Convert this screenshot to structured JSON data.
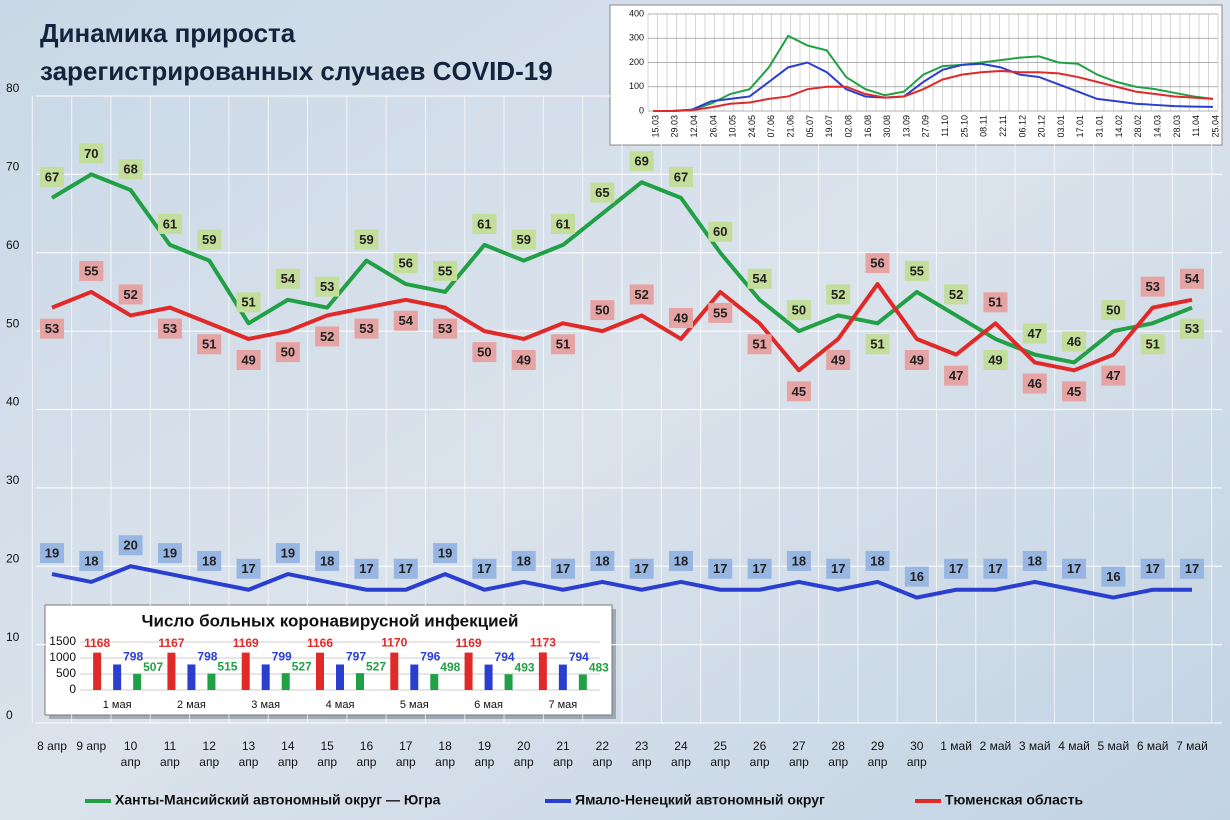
{
  "chart_data": [
    {
      "type": "line",
      "title": "Динамика прироста\nзарегистрированных случаев COVID-19",
      "categories": [
        "8 апр",
        "9 апр",
        "10 апр",
        "11 апр",
        "12 апр",
        "13 апр",
        "14 апр",
        "15 апр",
        "16 апр",
        "17 апр",
        "18 апр",
        "19 апр",
        "20 апр",
        "21 апр",
        "22 апр",
        "23 апр",
        "24 апр",
        "25 апр",
        "26 апр",
        "27 апр",
        "28 апр",
        "29 апр",
        "30 апр",
        "1 май",
        "2 май",
        "3 май",
        "4 май",
        "5 май",
        "6 май",
        "7 май"
      ],
      "series": [
        {
          "name": "Ханты-Мансийский автономный округ — Югра",
          "color": "#22a046",
          "values": [
            67,
            70,
            68,
            61,
            59,
            51,
            54,
            53,
            59,
            56,
            55,
            61,
            59,
            61,
            65,
            69,
            67,
            60,
            54,
            50,
            52,
            51,
            55,
            52,
            49,
            47,
            46,
            50,
            51,
            53
          ]
        },
        {
          "name": "Ямало-Ненецкий автономный округ",
          "color": "#2a3fd0",
          "values": [
            19,
            18,
            20,
            19,
            18,
            17,
            19,
            18,
            17,
            17,
            19,
            17,
            18,
            17,
            18,
            17,
            18,
            17,
            17,
            18,
            17,
            18,
            16,
            17,
            17,
            18,
            17,
            16,
            17,
            17
          ]
        },
        {
          "name": "Тюменская область",
          "color": "#e02a2a",
          "values": [
            53,
            55,
            52,
            53,
            51,
            49,
            50,
            52,
            53,
            54,
            53,
            50,
            49,
            51,
            50,
            52,
            49,
            55,
            51,
            45,
            49,
            56,
            49,
            47,
            51,
            46,
            45,
            47,
            53,
            54
          ]
        }
      ],
      "ylim": [
        0,
        80
      ],
      "yticks": [
        0,
        10,
        20,
        30,
        40,
        50,
        60,
        70,
        80
      ],
      "grid": true
    },
    {
      "type": "line",
      "categories": [
        "15.03",
        "29.03",
        "12.04",
        "26.04",
        "10.05",
        "24.05",
        "07.06",
        "21.06",
        "05.07",
        "19.07",
        "02.08",
        "16.08",
        "30.08",
        "13.09",
        "27.09",
        "11.10",
        "25.10",
        "08.11",
        "22.11",
        "06.12",
        "20.12",
        "03.01",
        "17.01",
        "31.01",
        "14.02",
        "28.02",
        "14.03",
        "28.03",
        "11.04",
        "25.04"
      ],
      "series": [
        {
          "color": "#22a046",
          "values": [
            0,
            0,
            5,
            30,
            70,
            90,
            180,
            310,
            270,
            250,
            140,
            90,
            65,
            80,
            150,
            185,
            190,
            200,
            210,
            220,
            225,
            200,
            195,
            150,
            120,
            100,
            90,
            75,
            60,
            50
          ]
        },
        {
          "color": "#2a3fd0",
          "values": [
            0,
            0,
            5,
            40,
            50,
            60,
            120,
            180,
            200,
            160,
            90,
            60,
            55,
            60,
            120,
            170,
            190,
            195,
            180,
            150,
            140,
            110,
            80,
            50,
            40,
            30,
            25,
            20,
            18,
            17
          ]
        },
        {
          "color": "#e02a2a",
          "values": [
            0,
            0,
            3,
            15,
            30,
            35,
            50,
            60,
            90,
            100,
            100,
            70,
            55,
            60,
            90,
            130,
            150,
            160,
            165,
            160,
            160,
            155,
            140,
            120,
            100,
            80,
            70,
            60,
            55,
            50
          ]
        }
      ],
      "ylim": [
        0,
        400
      ],
      "yticks": [
        0,
        100,
        200,
        300,
        400
      ],
      "grid": true
    },
    {
      "type": "bar",
      "title": "Число больных коронавирусной инфекцией",
      "categories": [
        "1 мая",
        "2 мая",
        "3 мая",
        "4 мая",
        "5 мая",
        "6 мая",
        "7 мая"
      ],
      "series": [
        {
          "color": "#e02a2a",
          "values": [
            1168,
            1167,
            1169,
            1166,
            1170,
            1169,
            1173
          ]
        },
        {
          "color": "#2a3fd0",
          "values": [
            798,
            798,
            799,
            797,
            796,
            794,
            794
          ]
        },
        {
          "color": "#22a046",
          "values": [
            507,
            515,
            527,
            527,
            498,
            493,
            483
          ]
        }
      ],
      "ylim": [
        0,
        1500
      ],
      "yticks": [
        0,
        500,
        1000,
        1500
      ],
      "grid": true
    }
  ]
}
